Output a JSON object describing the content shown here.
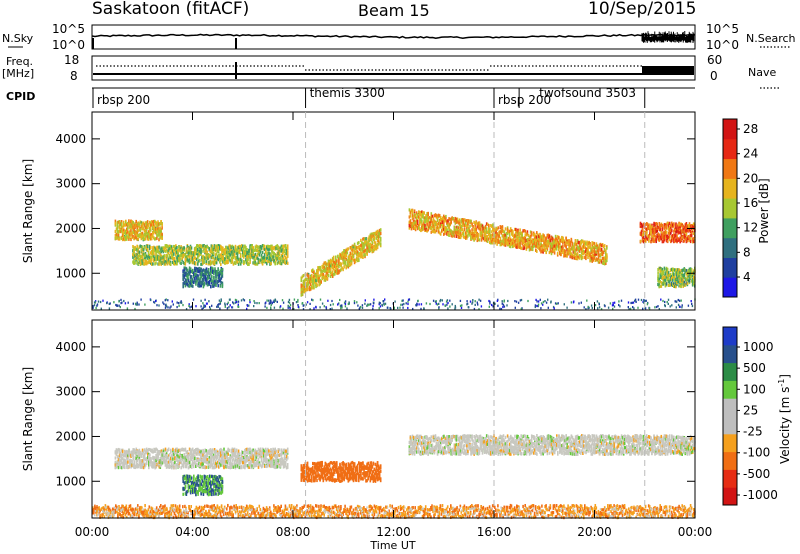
{
  "header": {
    "station": "Saskatoon (fitACF)",
    "beam": "Beam 15",
    "date": "10/Sep/2015"
  },
  "strip_panels": {
    "nsky": {
      "left_label": "N.Sky",
      "left_ticks": [
        "10^5",
        "10^0"
      ],
      "right_ticks": [
        "10^5",
        "10^0"
      ],
      "right_label": "N.Search"
    },
    "freq": {
      "left_label_1": "Freq.",
      "left_label_2": "[MHz]",
      "left_ticks": [
        "18",
        "8"
      ],
      "right_ticks": [
        "60",
        "0"
      ],
      "right_label": "Nave"
    },
    "cpid": {
      "label": "CPID",
      "segments": [
        {
          "name": "rbsp 200",
          "start_hour": 0.5
        },
        {
          "name": "themis 3300",
          "start_hour": 8.5
        },
        {
          "name": "rbsp 200",
          "start_hour": 16.0
        },
        {
          "name": "twofsound 3503",
          "start_hour": 17.0
        },
        {
          "name": "",
          "start_hour": 22.0
        }
      ]
    }
  },
  "colors": {
    "power_scale": [
      "#1e18e6",
      "#1f3fa0",
      "#2f6f7f",
      "#3f9f5f",
      "#a7c832",
      "#e6b41e",
      "#f07814",
      "#e62814",
      "#d21414"
    ],
    "velocity_scale": [
      "#1e3cc8",
      "#28508c",
      "#2c8c46",
      "#64c83c",
      "#bebebe",
      "#bebebe",
      "#f5a01e",
      "#f06e14",
      "#e62d14",
      "#d21414"
    ],
    "velocity_gray": "#c8c8c0"
  },
  "chart_data": [
    {
      "type": "heatmap",
      "title": "Power",
      "xlabel": "Time UT",
      "ylabel": "Slant Range [km]",
      "xlim": [
        0,
        24
      ],
      "ylim": [
        180,
        4600
      ],
      "x_ticks": [
        "00:00",
        "04:00",
        "08:00",
        "12:00",
        "16:00",
        "20:00",
        "00:00"
      ],
      "y_ticks": [
        "1000",
        "2000",
        "3000",
        "4000"
      ],
      "colorbar": {
        "label": "Power [dB]",
        "ticks": [
          "4",
          "8",
          "12",
          "16",
          "20",
          "24",
          "28"
        ],
        "range": [
          0,
          30
        ]
      },
      "features": [
        {
          "t_start": 0.9,
          "t_end": 2.8,
          "range_km": 1950,
          "value_db": 18
        },
        {
          "t_start": 1.6,
          "t_end": 7.8,
          "range_km": 1400,
          "value_db": 15
        },
        {
          "t_start": 3.6,
          "t_end": 5.2,
          "range_km": 900,
          "value_db": 8
        },
        {
          "t_start": 8.3,
          "t_end": 11.5,
          "range_km_start": 700,
          "range_km_end": 1800,
          "value_db": 18
        },
        {
          "t_start": 12.6,
          "t_end": 20.5,
          "range_km_start": 2200,
          "range_km_end": 1400,
          "value_db": 20
        },
        {
          "t_start": 21.8,
          "t_end": 24.0,
          "range_km": 1900,
          "value_db": 24
        },
        {
          "t_start": 22.5,
          "t_end": 24.0,
          "range_km": 900,
          "value_db": 14
        }
      ],
      "vertical_markers_hours": [
        8.5,
        16.0,
        22.0
      ]
    },
    {
      "type": "heatmap",
      "title": "Velocity",
      "xlabel": "Time UT",
      "ylabel": "Slant Range [km]",
      "xlim": [
        0,
        24
      ],
      "ylim": [
        180,
        4600
      ],
      "x_ticks": [
        "00:00",
        "04:00",
        "08:00",
        "12:00",
        "16:00",
        "20:00",
        "00:00"
      ],
      "y_ticks": [
        "1000",
        "2000",
        "3000",
        "4000"
      ],
      "colorbar": {
        "label_main": "Velocity  [m s",
        "label_sup": "-1",
        "label_end": "]",
        "ticks": [
          "1000",
          "500",
          "100",
          "25",
          "-25",
          "-100",
          "-500",
          "-1000"
        ]
      },
      "features": [
        {
          "t_start": 0.9,
          "t_end": 7.8,
          "range_km": 1500,
          "velocity": 0
        },
        {
          "t_start": 3.6,
          "t_end": 5.2,
          "range_km": 900,
          "velocity": 100
        },
        {
          "t_start": 8.3,
          "t_end": 11.5,
          "range_km": 1200,
          "velocity": -300
        },
        {
          "t_start": 12.6,
          "t_end": 24.0,
          "range_km": 1800,
          "velocity": 0
        },
        {
          "t_start": 0.0,
          "t_end": 24.0,
          "range_km": 300,
          "velocity": -100
        }
      ],
      "vertical_markers_hours": [
        8.5,
        16.0,
        22.0
      ]
    }
  ]
}
